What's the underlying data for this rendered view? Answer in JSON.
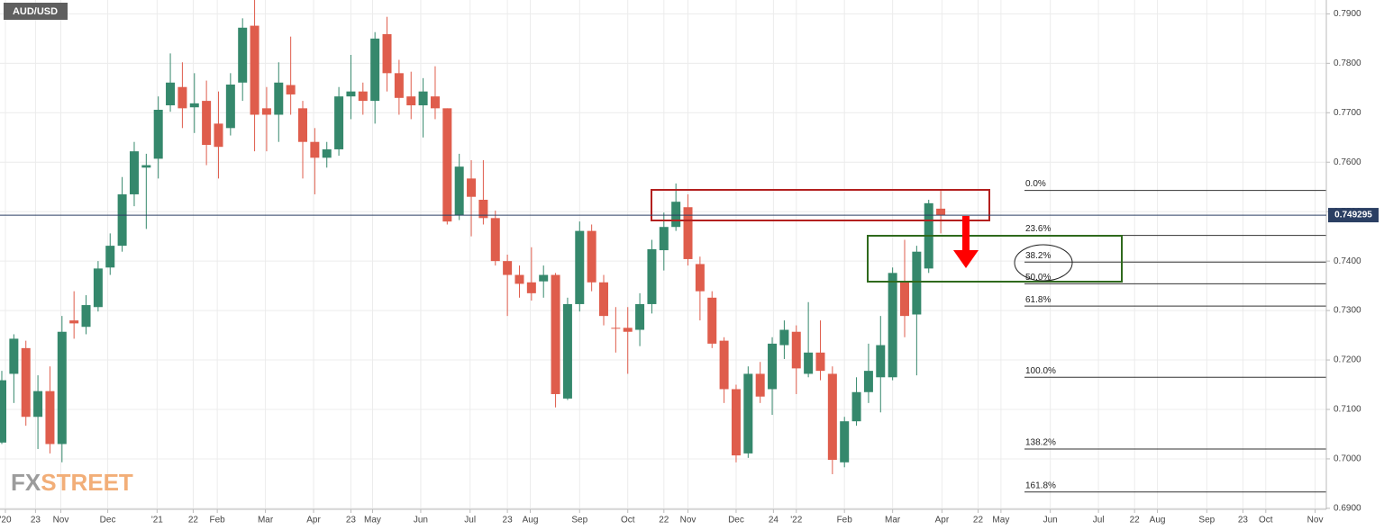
{
  "chart_data": {
    "type": "candlestick",
    "title": "AUD/USD",
    "watermark": [
      "FX",
      "STREET"
    ],
    "up_color": "#35886c",
    "down_color": "#df5d4c",
    "grid": true,
    "xlim": [
      -0.15,
      110.03
    ],
    "xticks": [
      {
        "value": 0.3,
        "label": "'20"
      },
      {
        "value": 2.8,
        "label": "23"
      },
      {
        "value": 4.9,
        "label": "Nov"
      },
      {
        "value": 8.8,
        "label": "Dec"
      },
      {
        "value": 12.9,
        "label": "'21"
      },
      {
        "value": 15.9,
        "label": "22"
      },
      {
        "value": 17.9,
        "label": "Feb"
      },
      {
        "value": 21.9,
        "label": "Mar"
      },
      {
        "value": 25.9,
        "label": "Apr"
      },
      {
        "value": 29.0,
        "label": "23"
      },
      {
        "value": 30.8,
        "label": "May"
      },
      {
        "value": 34.8,
        "label": "Jun"
      },
      {
        "value": 38.9,
        "label": "Jul"
      },
      {
        "value": 42.0,
        "label": "23"
      },
      {
        "value": 43.9,
        "label": "Aug"
      },
      {
        "value": 48.0,
        "label": "Sep"
      },
      {
        "value": 52.0,
        "label": "Oct"
      },
      {
        "value": 55.0,
        "label": "22"
      },
      {
        "value": 57.0,
        "label": "Nov"
      },
      {
        "value": 61.0,
        "label": "Dec"
      },
      {
        "value": 64.1,
        "label": "24"
      },
      {
        "value": 66.0,
        "label": "'22"
      },
      {
        "value": 70.0,
        "label": "Feb"
      },
      {
        "value": 74.0,
        "label": "Mar"
      },
      {
        "value": 78.1,
        "label": "Apr"
      },
      {
        "value": 81.1,
        "label": "22"
      },
      {
        "value": 83.0,
        "label": "May"
      },
      {
        "value": 87.1,
        "label": "Jun"
      },
      {
        "value": 91.1,
        "label": "Jul"
      },
      {
        "value": 94.1,
        "label": "22"
      },
      {
        "value": 96.0,
        "label": "Aug"
      },
      {
        "value": 100.1,
        "label": "Sep"
      },
      {
        "value": 103.1,
        "label": "23"
      },
      {
        "value": 105.0,
        "label": "Oct"
      },
      {
        "value": 109.1,
        "label": "Nov"
      }
    ],
    "ylim": [
      0.6898,
      0.7928
    ],
    "yticks": [
      {
        "value": 0.69,
        "label": "0.6900"
      },
      {
        "value": 0.7,
        "label": "0.7000"
      },
      {
        "value": 0.71,
        "label": "0.7100"
      },
      {
        "value": 0.72,
        "label": "0.7200"
      },
      {
        "value": 0.73,
        "label": "0.7300"
      },
      {
        "value": 0.74,
        "label": "0.7400"
      },
      {
        "value": 0.75,
        "label": "0.7500"
      },
      {
        "value": 0.76,
        "label": "0.7600"
      },
      {
        "value": 0.77,
        "label": "0.7700"
      },
      {
        "value": 0.78,
        "label": "0.7800"
      },
      {
        "value": 0.79,
        "label": "0.7900"
      }
    ],
    "open": [
      0.7033,
      0.7172,
      0.7224,
      0.7085,
      0.7137,
      0.703,
      0.728,
      0.7267,
      0.7307,
      0.7387,
      0.7431,
      0.7535,
      0.7589,
      0.7607,
      0.7715,
      0.7752,
      0.7711,
      0.7724,
      0.7678,
      0.7669,
      0.7761,
      0.7876,
      0.7709,
      0.7696,
      0.7756,
      0.7709,
      0.7641,
      0.7609,
      0.7626,
      0.7733,
      0.7743,
      0.7724,
      0.7859,
      0.778,
      0.7733,
      0.7715,
      0.7733,
      0.7709,
      0.7493,
      0.7567,
      0.7524,
      0.7487,
      0.74,
      0.7372,
      0.7357,
      0.7359,
      0.7372,
      0.7122,
      0.7313,
      0.7461,
      0.7357,
      0.7265,
      0.7265,
      0.7261,
      0.7313,
      0.7422,
      0.7469,
      0.7509,
      0.7394,
      0.7326,
      0.7239,
      0.7141,
      0.7011,
      0.7172,
      0.7141,
      0.723,
      0.7257,
      0.7172,
      0.7215,
      0.7172,
      0.6993,
      0.7076,
      0.7135,
      0.7165,
      0.7165,
      0.7357,
      0.7292,
      0.7385,
      0.7506
    ],
    "high": [
      0.7178,
      0.7252,
      0.7239,
      0.7169,
      0.7187,
      0.7289,
      0.7339,
      0.7331,
      0.74,
      0.7456,
      0.757,
      0.7641,
      0.7617,
      0.7733,
      0.782,
      0.7802,
      0.778,
      0.7765,
      0.7743,
      0.778,
      0.7891,
      0.7928,
      0.7752,
      0.7802,
      0.7854,
      0.7724,
      0.7669,
      0.7641,
      0.7752,
      0.7817,
      0.7761,
      0.7863,
      0.7894,
      0.7807,
      0.7783,
      0.777,
      0.7794,
      0.7709,
      0.7617,
      0.7604,
      0.7604,
      0.7502,
      0.7413,
      0.7391,
      0.7428,
      0.7391,
      0.7376,
      0.7326,
      0.748,
      0.7474,
      0.7372,
      0.7307,
      0.7307,
      0.7335,
      0.7443,
      0.7498,
      0.7557,
      0.7535,
      0.7409,
      0.7339,
      0.7246,
      0.715,
      0.7187,
      0.7196,
      0.7246,
      0.728,
      0.727,
      0.7317,
      0.728,
      0.7187,
      0.7085,
      0.7165,
      0.7233,
      0.7289,
      0.7387,
      0.7443,
      0.7431,
      0.7524,
      0.7543
    ],
    "low": [
      0.703,
      0.7113,
      0.7067,
      0.702,
      0.7011,
      0.6993,
      0.7243,
      0.7252,
      0.7298,
      0.7372,
      0.7419,
      0.7511,
      0.7465,
      0.7567,
      0.7702,
      0.7669,
      0.7659,
      0.7594,
      0.7567,
      0.7654,
      0.7724,
      0.7622,
      0.7622,
      0.7641,
      0.7696,
      0.7567,
      0.7535,
      0.7589,
      0.7613,
      0.7687,
      0.7696,
      0.7678,
      0.7743,
      0.7696,
      0.7687,
      0.765,
      0.7687,
      0.7474,
      0.7483,
      0.745,
      0.7474,
      0.7391,
      0.7289,
      0.7326,
      0.732,
      0.7326,
      0.7104,
      0.7119,
      0.7298,
      0.7339,
      0.727,
      0.7215,
      0.7172,
      0.7228,
      0.7294,
      0.7381,
      0.7461,
      0.7391,
      0.728,
      0.7224,
      0.7113,
      0.6993,
      0.7002,
      0.7113,
      0.7089,
      0.7202,
      0.7131,
      0.7165,
      0.7159,
      0.6969,
      0.6983,
      0.7067,
      0.7113,
      0.7094,
      0.7159,
      0.7246,
      0.7169,
      0.7376,
      0.7456
    ],
    "close": [
      0.7159,
      0.7243,
      0.7085,
      0.7137,
      0.703,
      0.7257,
      0.7274,
      0.7311,
      0.7385,
      0.7431,
      0.7535,
      0.7622,
      0.7594,
      0.7706,
      0.7761,
      0.7709,
      0.7719,
      0.7635,
      0.7631,
      0.7757,
      0.7872,
      0.7696,
      0.7696,
      0.7761,
      0.7737,
      0.7641,
      0.7609,
      0.7626,
      0.7733,
      0.7743,
      0.7724,
      0.785,
      0.778,
      0.773,
      0.7715,
      0.7743,
      0.7709,
      0.748,
      0.7591,
      0.753,
      0.7487,
      0.74,
      0.7372,
      0.7354,
      0.7335,
      0.7372,
      0.7131,
      0.7313,
      0.7461,
      0.7357,
      0.7289,
      0.7264,
      0.7257,
      0.7313,
      0.7424,
      0.7469,
      0.752,
      0.7404,
      0.7339,
      0.7233,
      0.7141,
      0.7007,
      0.7172,
      0.7126,
      0.7233,
      0.7261,
      0.7183,
      0.7215,
      0.7178,
      0.6998,
      0.7076,
      0.7135,
      0.7178,
      0.723,
      0.7376,
      0.7289,
      0.7419,
      0.7517,
      0.7493
    ],
    "last_price": 0.749295,
    "fib_levels": [
      {
        "label": "0.0%",
        "value": 0.7543
      },
      {
        "label": "23.6%",
        "value": 0.7452
      },
      {
        "label": "38.2%",
        "value": 0.7398
      },
      {
        "label": "50.0%",
        "value": 0.7354
      },
      {
        "label": "61.8%",
        "value": 0.7309
      },
      {
        "label": "100.0%",
        "value": 0.7165
      },
      {
        "label": "138.2%",
        "value": 0.702
      },
      {
        "label": "161.8%",
        "value": 0.6933
      }
    ]
  }
}
